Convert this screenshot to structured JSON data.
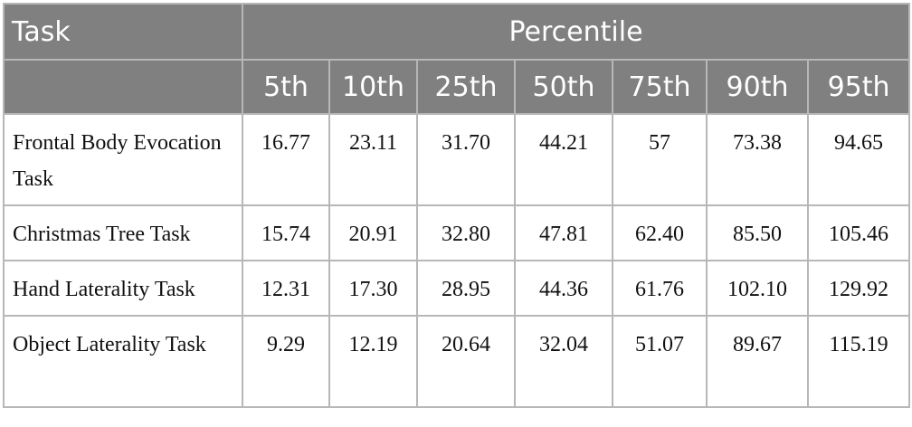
{
  "header": {
    "task_label": "Task",
    "percentile_label": "Percentile",
    "percentiles": [
      "5th",
      "10th",
      "25th",
      "50th",
      "75th",
      "90th",
      "95th"
    ]
  },
  "rows": [
    {
      "task": "Frontal Body Evocation Task",
      "values": [
        "16.77",
        "23.11",
        "31.70",
        "44.21",
        "57",
        "73.38",
        "94.65"
      ]
    },
    {
      "task": "Christmas Tree Task",
      "values": [
        "15.74",
        "20.91",
        "32.80",
        "47.81",
        "62.40",
        "85.50",
        "105.46"
      ]
    },
    {
      "task": "Hand Laterality Task",
      "values": [
        "12.31",
        "17.30",
        "28.95",
        "44.36",
        "61.76",
        "102.10",
        "129.92"
      ]
    },
    {
      "task": "Object Laterality Task",
      "values": [
        "9.29",
        "12.19",
        "20.64",
        "32.04",
        "51.07",
        "89.67",
        "115.19"
      ]
    }
  ]
}
